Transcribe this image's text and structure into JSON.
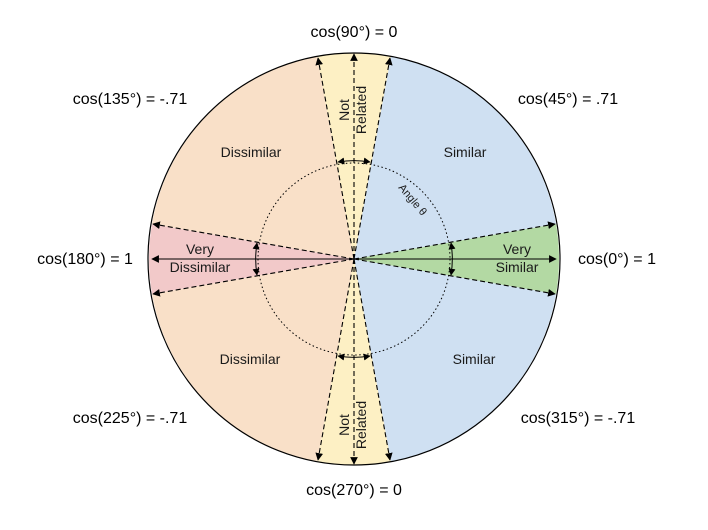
{
  "labels": {
    "cos_90": "cos(90°) = 0",
    "cos_45": "cos(45°) = .71",
    "cos_0": "cos(0°) = 1",
    "cos_315": "cos(315°) = -.71",
    "cos_270": "cos(270°) = 0",
    "cos_225": "cos(225°) = -.71",
    "cos_180": "cos(180°) = 1",
    "cos_135": "cos(135°) = -.71"
  },
  "regions": {
    "similar_top": "Similar",
    "similar_bottom": "Similar",
    "dissimilar_top": "Dissimilar",
    "dissimilar_bottom": "Dissimilar",
    "very_similar_1": "Very",
    "very_similar_2": "Similar",
    "very_dissimilar_1": "Very",
    "very_dissimilar_2": "Dissimilar",
    "not_related_top_1": "Not",
    "not_related_top_2": "Related",
    "not_related_bottom_1": "Not",
    "not_related_bottom_2": "Related"
  },
  "angle_label": "Angle θ",
  "colors": {
    "similar": "#cfe0f2",
    "dissimilar": "#f9e0c8",
    "very_similar": "#b3d9a3",
    "very_dissimilar": "#f2c9c9",
    "not_related": "#fdf0c4"
  }
}
